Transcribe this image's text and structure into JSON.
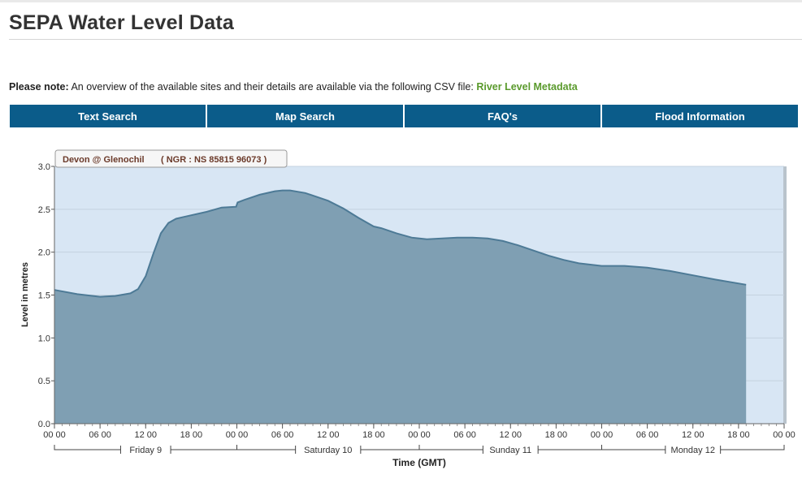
{
  "page": {
    "title": "SEPA Water Level Data",
    "note_label": "Please note:",
    "note_text": "An overview of the available sites and their details are available via the following CSV file:",
    "note_link": "River Level Metadata"
  },
  "nav": {
    "tabs": [
      "Text Search",
      "Map Search",
      "FAQ's",
      "Flood Information"
    ]
  },
  "station": {
    "name": "Devon @ Glenochil",
    "ngr": "( NGR : NS 85815 96073 )"
  },
  "colors": {
    "nav_bg": "#0b5c8a",
    "link": "#5a9a2c",
    "plot_bg": "#d8e6f4",
    "area_fill": "#7f9fb3",
    "area_line": "#4d7a96"
  },
  "chart_data": {
    "type": "area",
    "ylabel": "Level in metres",
    "xlabel": "Time (GMT)",
    "ylim": [
      0,
      3.0
    ],
    "yticks": [
      0.0,
      0.5,
      1.0,
      1.5,
      2.0,
      2.5,
      3.0
    ],
    "ytick_labels": [
      "0.0",
      "0.5",
      "1.0",
      "1.5",
      "2.0",
      "2.5",
      "3.0"
    ],
    "x_unit": "hours from Friday 9 00:00",
    "xlim": [
      0,
      96
    ],
    "x_ticks": [
      0,
      6,
      12,
      18,
      24,
      30,
      36,
      42,
      48,
      54,
      60,
      66,
      72,
      78,
      84,
      90,
      96
    ],
    "x_tick_labels": [
      "00 00",
      "06 00",
      "12 00",
      "18 00",
      "00 00",
      "06 00",
      "12 00",
      "18 00",
      "00 00",
      "06 00",
      "12 00",
      "18 00",
      "00 00",
      "06 00",
      "12 00",
      "18 00",
      "00 00"
    ],
    "day_labels": [
      {
        "label": "Friday 9",
        "from": 0,
        "to": 24
      },
      {
        "label": "Saturday 10",
        "from": 24,
        "to": 48
      },
      {
        "label": "Sunday 11",
        "from": 48,
        "to": 72
      },
      {
        "label": "Monday 12",
        "from": 72,
        "to": 96
      }
    ],
    "grid": true,
    "series": [
      {
        "x": [
          0,
          3,
          6,
          8,
          10,
          11,
          12,
          13,
          14,
          15,
          16,
          17,
          18,
          20,
          22,
          23.9,
          24.1,
          25,
          27,
          29,
          30,
          31,
          33,
          36,
          38,
          40,
          42,
          43,
          45,
          47,
          49,
          51,
          53,
          55,
          57,
          59,
          61,
          63,
          65,
          67,
          69,
          72,
          75,
          78,
          81,
          84,
          87,
          91
        ],
        "y": [
          1.56,
          1.51,
          1.48,
          1.49,
          1.52,
          1.57,
          1.72,
          1.98,
          2.22,
          2.34,
          2.39,
          2.41,
          2.43,
          2.47,
          2.52,
          2.53,
          2.58,
          2.61,
          2.67,
          2.71,
          2.72,
          2.72,
          2.69,
          2.6,
          2.51,
          2.4,
          2.3,
          2.28,
          2.22,
          2.17,
          2.15,
          2.16,
          2.17,
          2.17,
          2.16,
          2.13,
          2.08,
          2.02,
          1.96,
          1.91,
          1.87,
          1.84,
          1.84,
          1.82,
          1.78,
          1.73,
          1.68,
          1.62
        ]
      }
    ]
  }
}
